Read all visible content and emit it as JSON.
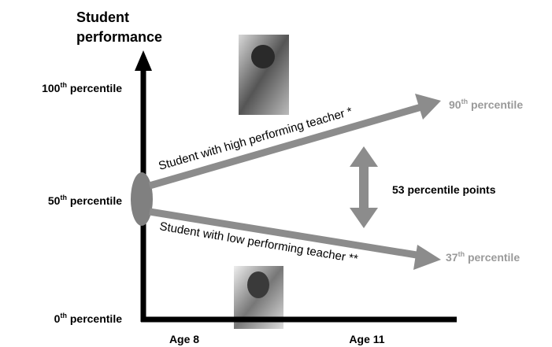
{
  "title": [
    "Student",
    "performance"
  ],
  "y_labels": [
    {
      "number": "100",
      "suffix": "th",
      "rest": " percentile"
    },
    {
      "number": "50",
      "suffix": "th",
      "rest": " percentile"
    },
    {
      "number": "0",
      "suffix": "th",
      "rest": " percentile"
    }
  ],
  "x_labels": [
    "Age 8",
    "Age 11"
  ],
  "paths": {
    "high": "Student with high performing teacher *",
    "low": "Student with low performing teacher **"
  },
  "outcomes": [
    {
      "number": "90",
      "suffix": "th",
      "rest": " percentile"
    },
    {
      "number": "37",
      "suffix": "th",
      "rest": " percentile"
    }
  ],
  "gap": "53 percentile points"
}
